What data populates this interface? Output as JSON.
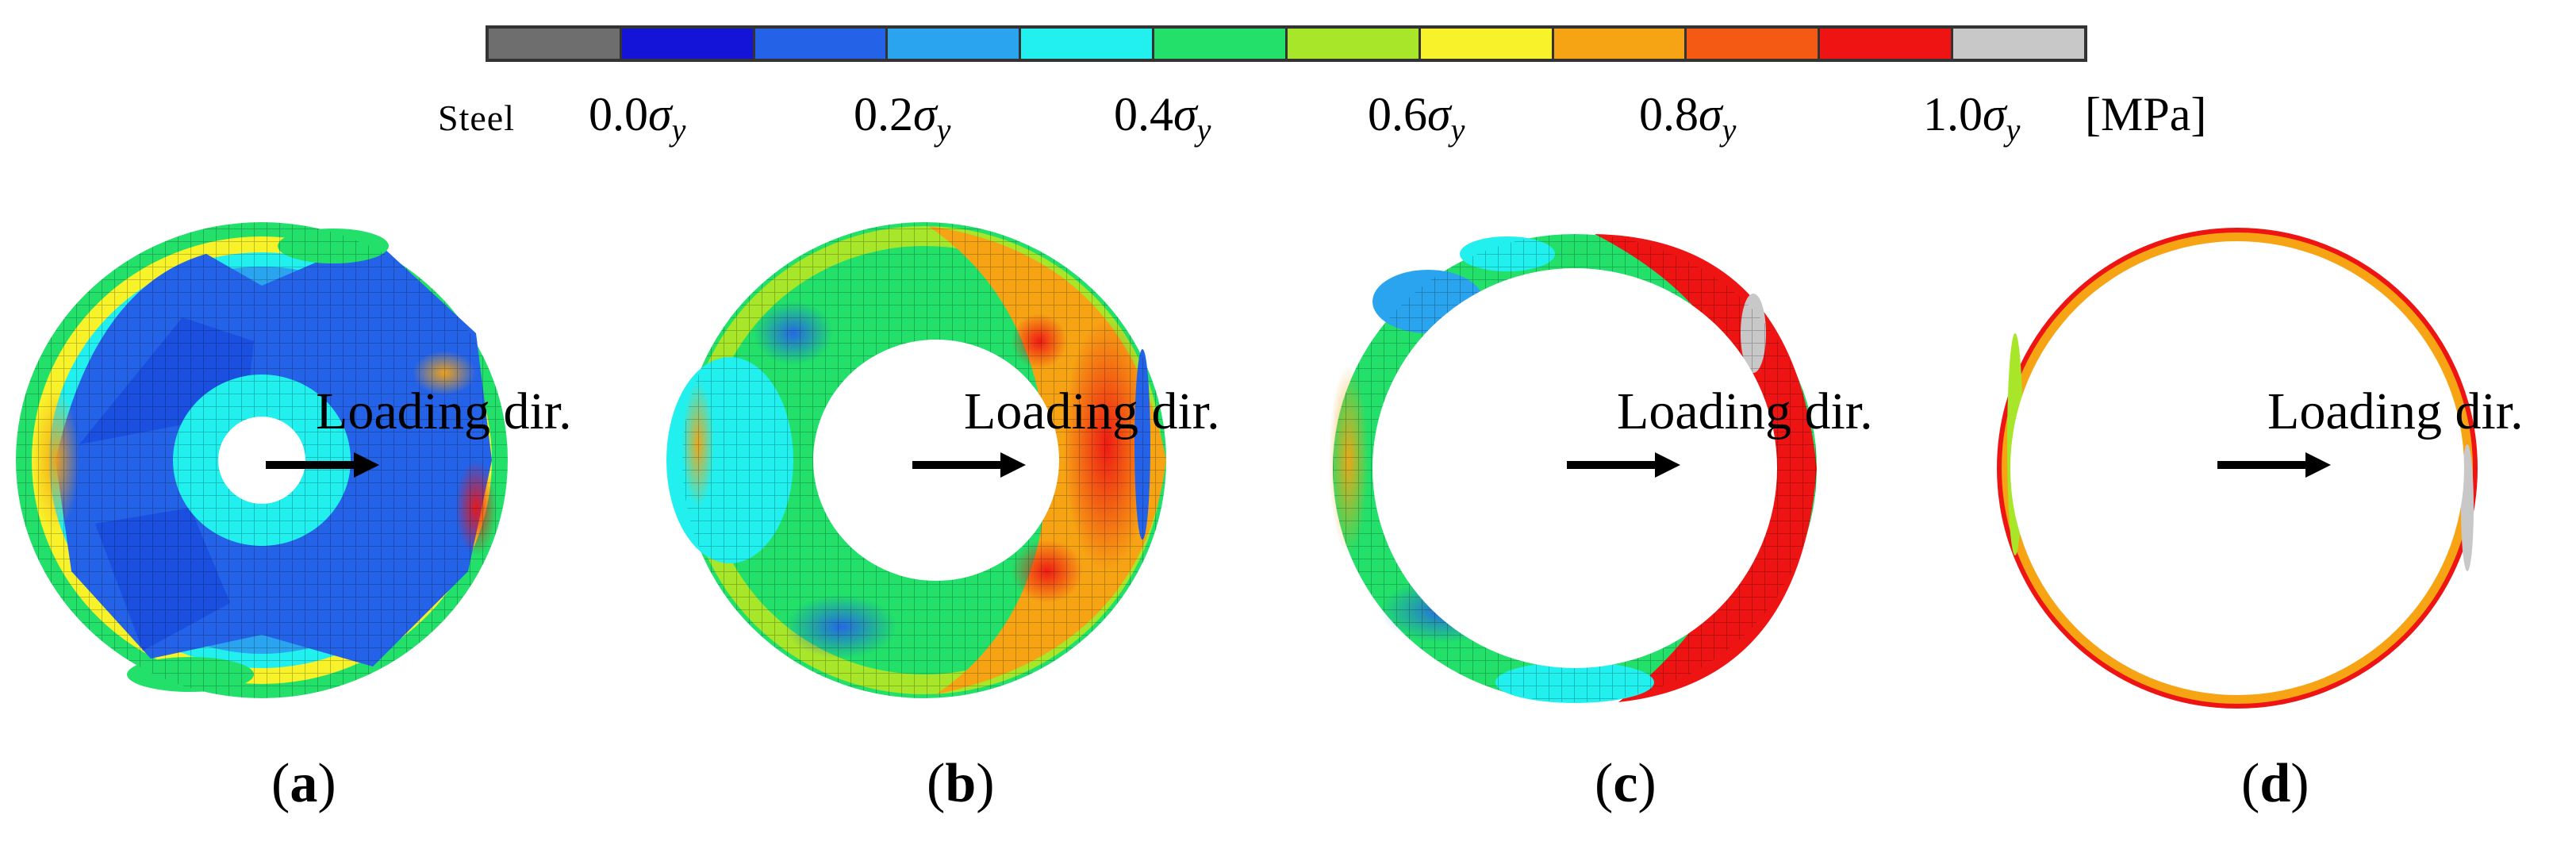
{
  "legend": {
    "colors": [
      "#6e6e6e",
      "#1414d8",
      "#2462e8",
      "#2aa4ee",
      "#22f0ee",
      "#22e06a",
      "#a8e62a",
      "#f8f22a",
      "#f6a414",
      "#f45a14",
      "#ee1414",
      "#c8c8c8"
    ],
    "steel_label": "Steel",
    "ticks": [
      {
        "value": "0.0",
        "symbol": "σ",
        "sub": "y"
      },
      {
        "value": "0.2",
        "symbol": "σ",
        "sub": "y"
      },
      {
        "value": "0.4",
        "symbol": "σ",
        "sub": "y"
      },
      {
        "value": "0.6",
        "symbol": "σ",
        "sub": "y"
      },
      {
        "value": "0.8",
        "symbol": "σ",
        "sub": "y"
      },
      {
        "value": "1.0",
        "symbol": "σ",
        "sub": "y"
      }
    ],
    "unit": "[MPa]"
  },
  "panels": [
    {
      "label": "a",
      "annotation": "Loading dir."
    },
    {
      "label": "b",
      "annotation": "Loading dir."
    },
    {
      "label": "c",
      "annotation": "Loading dir."
    },
    {
      "label": "d",
      "annotation": "Loading dir."
    }
  ]
}
